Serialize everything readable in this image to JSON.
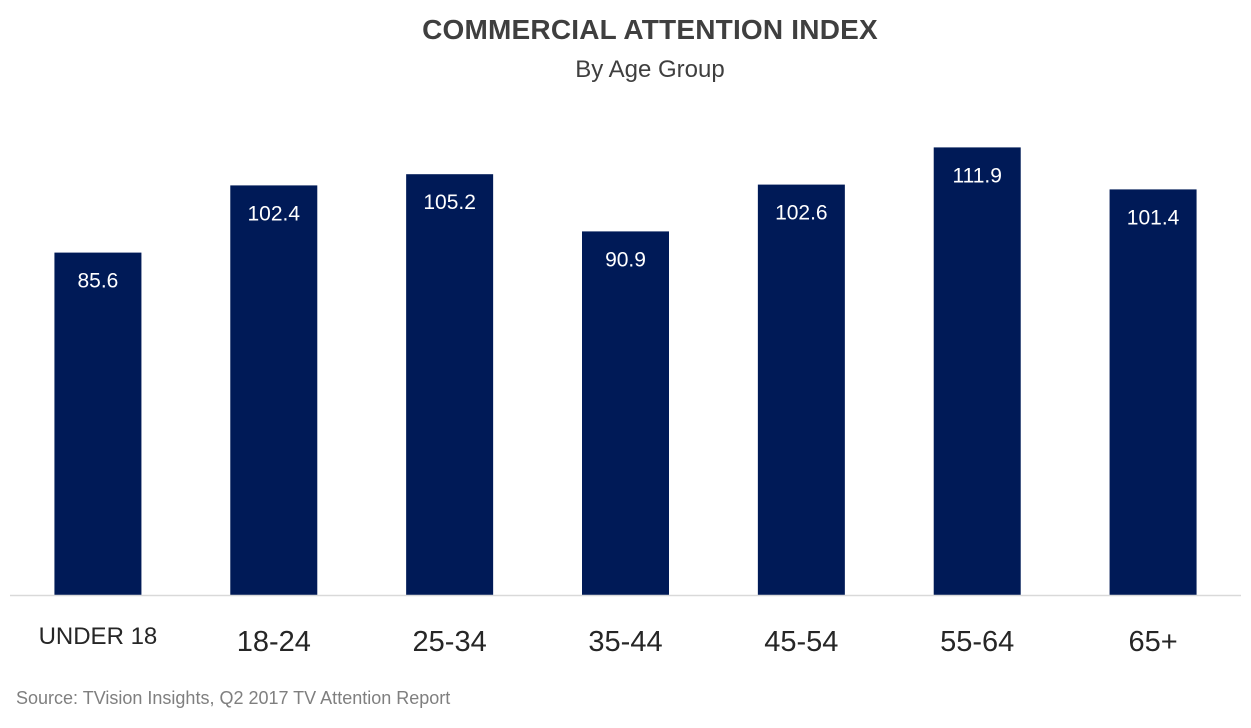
{
  "title": "COMMERCIAL ATTENTION INDEX",
  "subtitle": "By Age Group",
  "source": "Source: TVision Insights, Q2 2017 TV Attention Report",
  "colors": {
    "bar": "#001a57",
    "bar_label": "#ffffff",
    "axis_line": "#d9d9d9",
    "category_text": "#262626",
    "title_text": "#3f3f3f",
    "source_text": "#7f7f7f"
  },
  "chart_data": {
    "type": "bar",
    "title": "COMMERCIAL ATTENTION INDEX",
    "subtitle": "By Age Group",
    "xlabel": "",
    "ylabel": "",
    "categories": [
      "UNDER 18",
      "18-24",
      "25-34",
      "35-44",
      "45-54",
      "55-64",
      "65+"
    ],
    "values": [
      85.6,
      102.4,
      105.2,
      90.9,
      102.6,
      111.9,
      101.4
    ],
    "value_labels": [
      "85.6",
      "102.4",
      "105.2",
      "90.9",
      "102.6",
      "111.9",
      "101.4"
    ],
    "ylim": [
      0,
      130
    ],
    "grid": false,
    "legend": "none",
    "data_labels": "inside-top"
  }
}
